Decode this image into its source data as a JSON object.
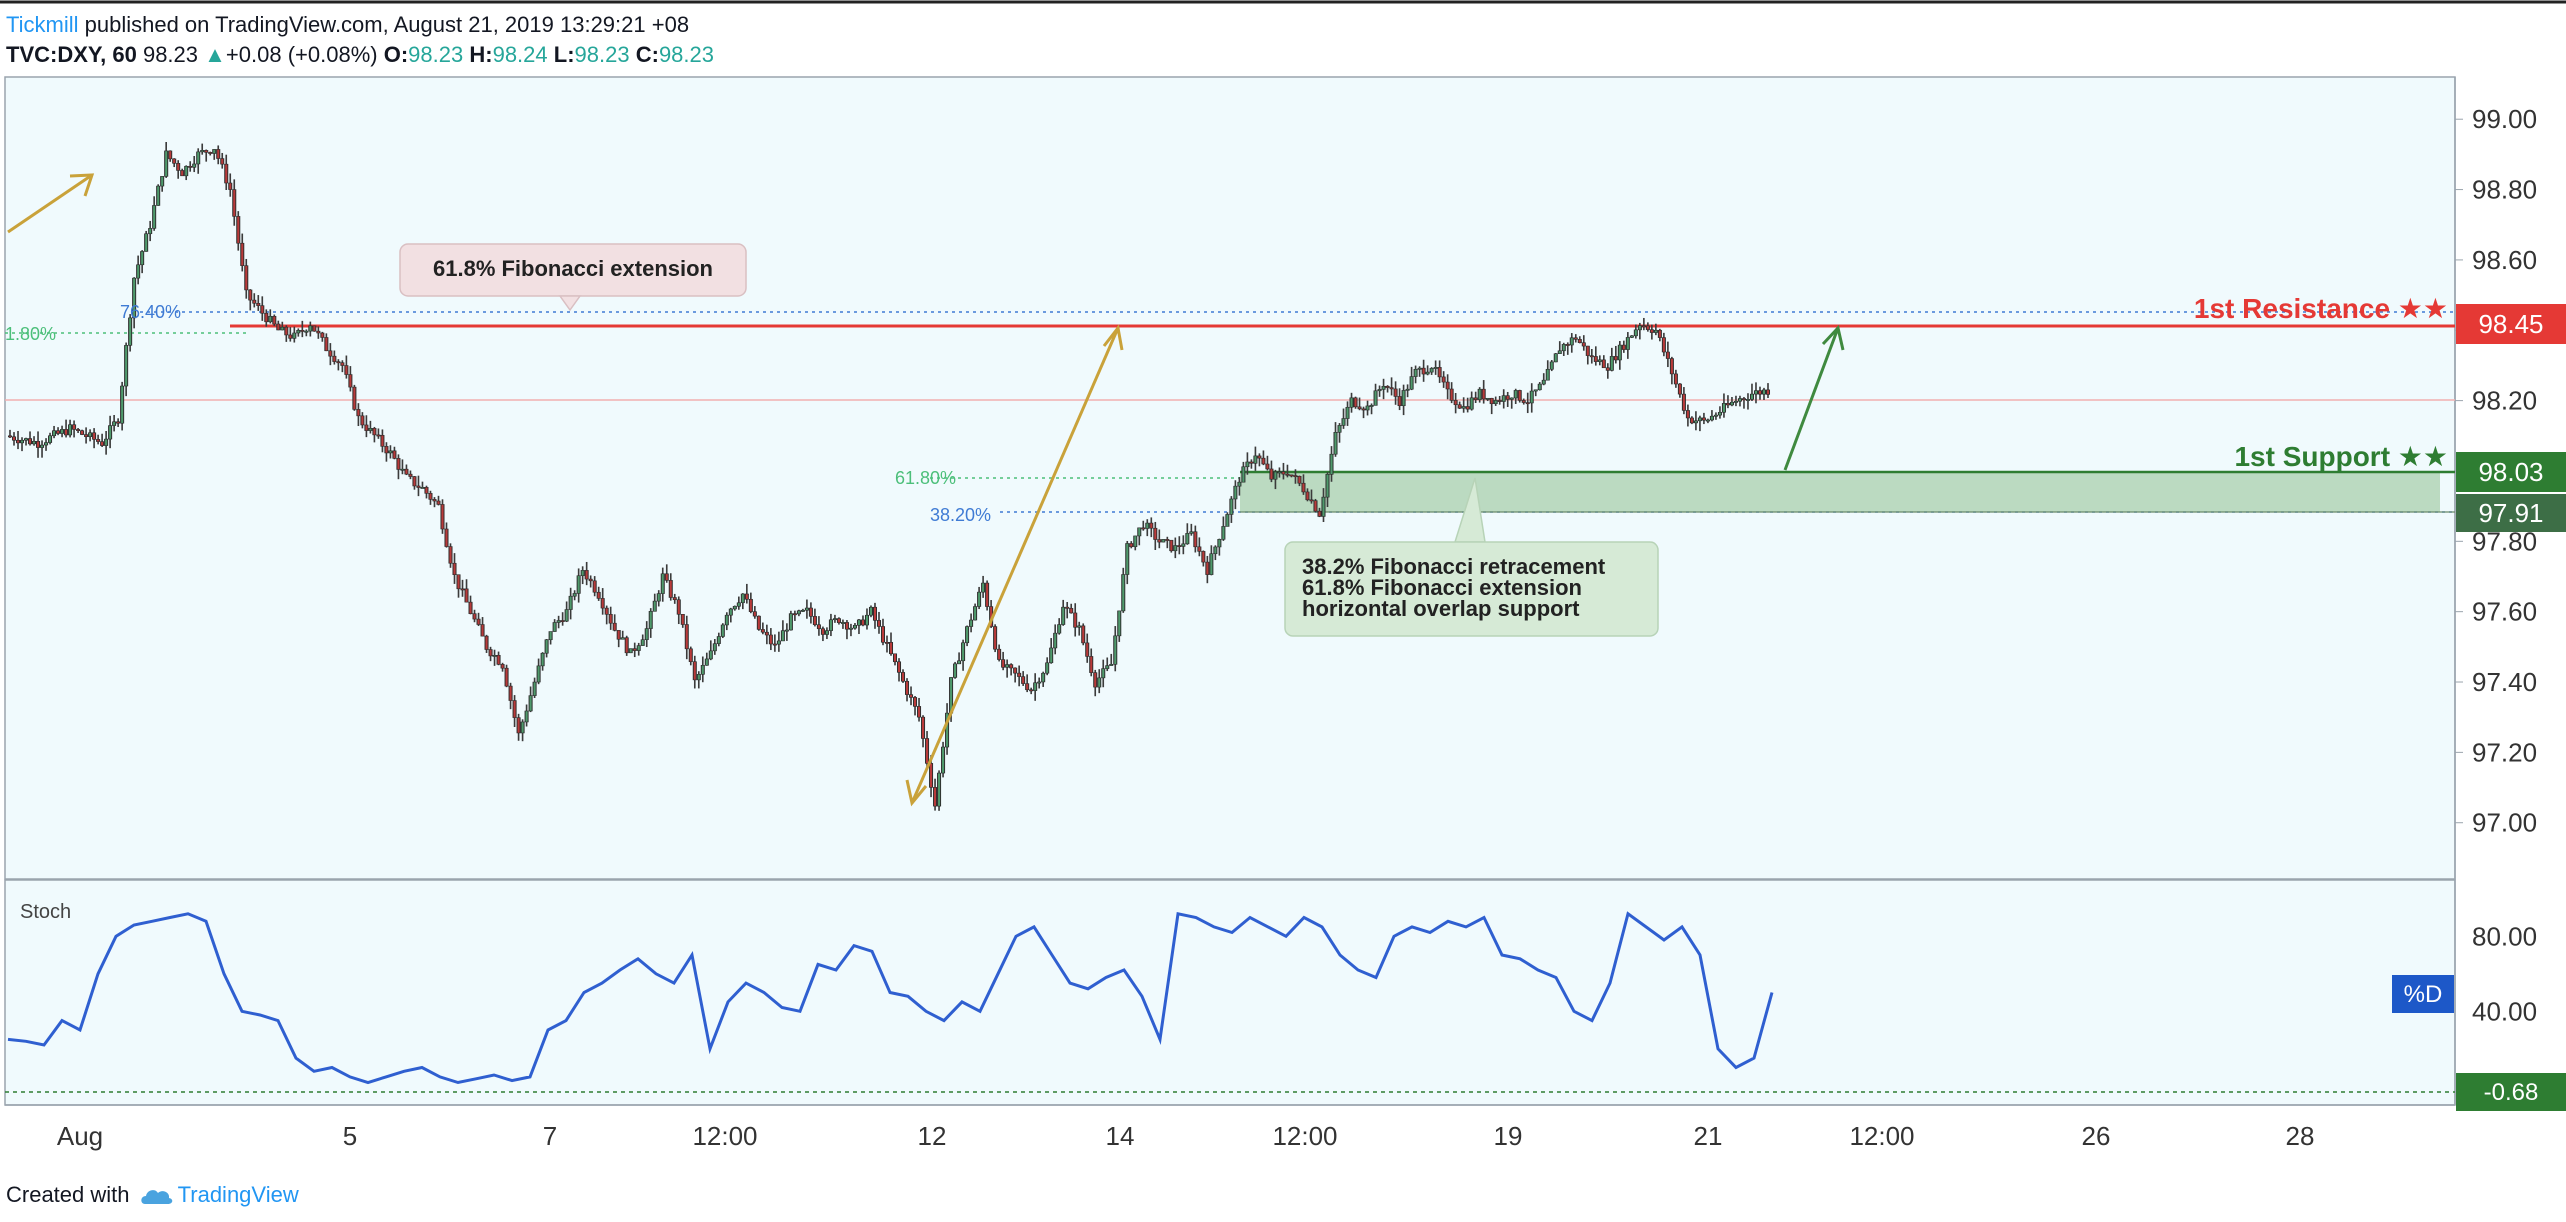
{
  "header": {
    "author": "Tickmill",
    "published": " published on TradingView.com, August 21, 2019 13:29:21 +08",
    "symbol": "TVC:DXY, 60",
    "last": "98.23",
    "change": "+0.08 (+0.08%)",
    "o_label": "O:",
    "o": "98.23",
    "h_label": "H:",
    "h": "98.24",
    "l_label": "L:",
    "l": "98.23",
    "c_label": "C:",
    "c": "98.23"
  },
  "footer": {
    "created": "Created with",
    "brand": "TradingView"
  },
  "colors": {
    "background": "#f0fafd",
    "up": "#4f9a6c",
    "down": "#b93a3a",
    "resistance": "#e53935",
    "support": "#2e7d32",
    "zone": "#8fbf8f",
    "arrow_gold": "#c9a23a",
    "arrow_green": "#3f8a3f",
    "fib_blue": "#3f7bd4",
    "fib_green": "#4cbf7a",
    "stoch": "#2f5fd0"
  },
  "annotations": {
    "callout_top": "61.8% Fibonacci extension",
    "callout_bottom": [
      "38.2% Fibonacci retracement",
      "61.8% Fibonacci extension",
      "horizontal overlap support"
    ],
    "resistance_label": "1st Resistance ★★",
    "support_label": "1st Support ★★",
    "fib_left_7640": "76.40%",
    "fib_left_cut": "1.80%",
    "fib_6180": "61.80%",
    "fib_3820": "38.20%"
  },
  "indicator": {
    "name": "Stoch",
    "series_badge": "%D",
    "last_value_label": "-0.68"
  },
  "chart_data": {
    "type": "candlestick",
    "title": "TVC:DXY, 60",
    "price_axis_ticks": [
      99.0,
      98.8,
      98.6,
      98.4,
      98.2,
      98.0,
      97.8,
      97.6,
      97.4,
      97.2,
      97.0
    ],
    "price_axis_tick_labels": [
      "99.00",
      "98.80",
      "98.60",
      "98.40",
      "98.20",
      "98.00",
      "97.80",
      "97.60",
      "97.40",
      "97.20",
      "97.00"
    ],
    "price_ylim": [
      96.84,
      99.12
    ],
    "levels": [
      {
        "name": "1st Resistance",
        "value": 98.45,
        "label": "98.45"
      },
      {
        "name": "1st Support",
        "value": 98.03,
        "label": "98.03"
      },
      {
        "name": "zone bottom",
        "value": 97.91,
        "label": "97.91"
      }
    ],
    "time_axis_labels": [
      "Aug",
      "5",
      "7",
      "12:00",
      "12",
      "14",
      "12:00",
      "19",
      "21",
      "12:00",
      "26",
      "28"
    ],
    "price_path": [
      [
        0,
        98.1
      ],
      [
        2,
        98.08
      ],
      [
        4,
        98.12
      ],
      [
        6,
        98.08
      ],
      [
        7,
        98.15
      ],
      [
        8,
        98.55
      ],
      [
        9,
        98.7
      ],
      [
        10,
        98.9
      ],
      [
        11,
        98.85
      ],
      [
        12,
        98.9
      ],
      [
        13,
        98.92
      ],
      [
        14,
        98.8
      ],
      [
        15,
        98.5
      ],
      [
        16,
        98.45
      ],
      [
        17,
        98.4
      ],
      [
        18,
        98.38
      ],
      [
        19,
        98.42
      ],
      [
        20,
        98.35
      ],
      [
        21,
        98.3
      ],
      [
        22,
        98.15
      ],
      [
        23,
        98.1
      ],
      [
        24,
        98.05
      ],
      [
        25,
        97.98
      ],
      [
        26,
        97.95
      ],
      [
        27,
        97.9
      ],
      [
        28,
        97.7
      ],
      [
        29,
        97.6
      ],
      [
        30,
        97.5
      ],
      [
        31,
        97.45
      ],
      [
        32,
        97.25
      ],
      [
        33,
        97.4
      ],
      [
        34,
        97.55
      ],
      [
        35,
        97.6
      ],
      [
        36,
        97.72
      ],
      [
        37,
        97.65
      ],
      [
        38,
        97.55
      ],
      [
        39,
        97.48
      ],
      [
        40,
        97.55
      ],
      [
        41,
        97.7
      ],
      [
        42,
        97.6
      ],
      [
        43,
        97.4
      ],
      [
        44,
        97.48
      ],
      [
        45,
        97.6
      ],
      [
        46,
        97.65
      ],
      [
        47,
        97.55
      ],
      [
        48,
        97.5
      ],
      [
        49,
        97.58
      ],
      [
        50,
        97.6
      ],
      [
        51,
        97.55
      ],
      [
        52,
        97.58
      ],
      [
        53,
        97.55
      ],
      [
        54,
        97.6
      ],
      [
        55,
        97.5
      ],
      [
        56,
        97.4
      ],
      [
        57,
        97.3
      ],
      [
        58,
        97.05
      ],
      [
        59,
        97.4
      ],
      [
        60,
        97.55
      ],
      [
        61,
        97.68
      ],
      [
        62,
        97.45
      ],
      [
        63,
        97.42
      ],
      [
        64,
        97.38
      ],
      [
        65,
        97.45
      ],
      [
        66,
        97.62
      ],
      [
        67,
        97.55
      ],
      [
        68,
        97.4
      ],
      [
        69,
        97.45
      ],
      [
        70,
        97.78
      ],
      [
        71,
        97.85
      ],
      [
        72,
        97.8
      ],
      [
        73,
        97.78
      ],
      [
        74,
        97.82
      ],
      [
        75,
        97.72
      ],
      [
        76,
        97.85
      ],
      [
        77,
        97.98
      ],
      [
        78,
        98.05
      ],
      [
        79,
        97.98
      ],
      [
        80,
        98.0
      ],
      [
        81,
        97.95
      ],
      [
        82,
        97.88
      ],
      [
        83,
        98.1
      ],
      [
        84,
        98.2
      ],
      [
        85,
        98.18
      ],
      [
        86,
        98.25
      ],
      [
        87,
        98.2
      ],
      [
        88,
        98.28
      ],
      [
        89,
        98.3
      ],
      [
        90,
        98.22
      ],
      [
        91,
        98.18
      ],
      [
        92,
        98.22
      ],
      [
        93,
        98.2
      ],
      [
        94,
        98.22
      ],
      [
        95,
        98.2
      ],
      [
        96,
        98.25
      ],
      [
        97,
        98.35
      ],
      [
        98,
        98.38
      ],
      [
        99,
        98.32
      ],
      [
        100,
        98.3
      ],
      [
        101,
        98.36
      ],
      [
        102,
        98.42
      ],
      [
        103,
        98.4
      ],
      [
        104,
        98.28
      ],
      [
        105,
        98.15
      ],
      [
        106,
        98.14
      ],
      [
        107,
        98.17
      ],
      [
        108,
        98.2
      ],
      [
        109,
        98.22
      ],
      [
        110,
        98.23
      ]
    ],
    "stochastic": {
      "name": "%D",
      "ylim": [
        -10,
        110
      ],
      "ticks": [
        80,
        40
      ],
      "tick_labels": [
        "80.00",
        "40.00"
      ],
      "baseline": -0.68,
      "values": [
        25,
        24,
        22,
        35,
        30,
        60,
        80,
        86,
        88,
        90,
        92,
        88,
        60,
        40,
        38,
        35,
        15,
        8,
        10,
        5,
        2,
        5,
        8,
        10,
        5,
        2,
        4,
        6,
        3,
        5,
        30,
        35,
        50,
        55,
        62,
        68,
        60,
        55,
        70,
        20,
        45,
        55,
        50,
        42,
        40,
        65,
        62,
        75,
        72,
        50,
        48,
        40,
        35,
        45,
        40,
        60,
        80,
        85,
        70,
        55,
        52,
        58,
        62,
        48,
        25,
        92,
        90,
        85,
        82,
        90,
        85,
        80,
        90,
        85,
        70,
        62,
        58,
        80,
        85,
        82,
        88,
        85,
        90,
        70,
        68,
        62,
        58,
        40,
        35,
        55,
        92,
        85,
        78,
        85,
        70,
        20,
        10,
        15,
        50
      ]
    }
  }
}
